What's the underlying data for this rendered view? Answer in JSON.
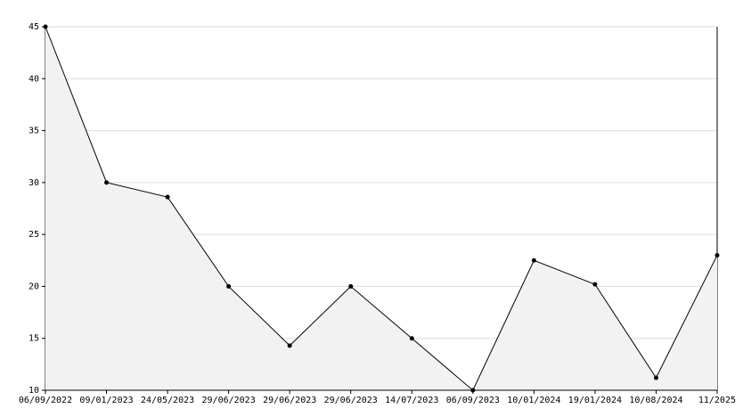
{
  "chart_data": {
    "type": "line",
    "categories": [
      "06/09/2022",
      "09/01/2023",
      "24/05/2023",
      "29/06/2023",
      "29/06/2023",
      "29/06/2023",
      "14/07/2023",
      "06/09/2023",
      "10/01/2024",
      "19/01/2024",
      "10/08/2024",
      "11/2025"
    ],
    "values": [
      45,
      30,
      28.6,
      20,
      14.3,
      20,
      15,
      10,
      22.5,
      20.2,
      11.2,
      23
    ],
    "color": "#000000",
    "fill": "#f2f2f2",
    "ylim": [
      10,
      45
    ],
    "yticks": [
      10,
      15,
      20,
      25,
      30,
      35,
      40,
      45
    ],
    "grid": true
  }
}
